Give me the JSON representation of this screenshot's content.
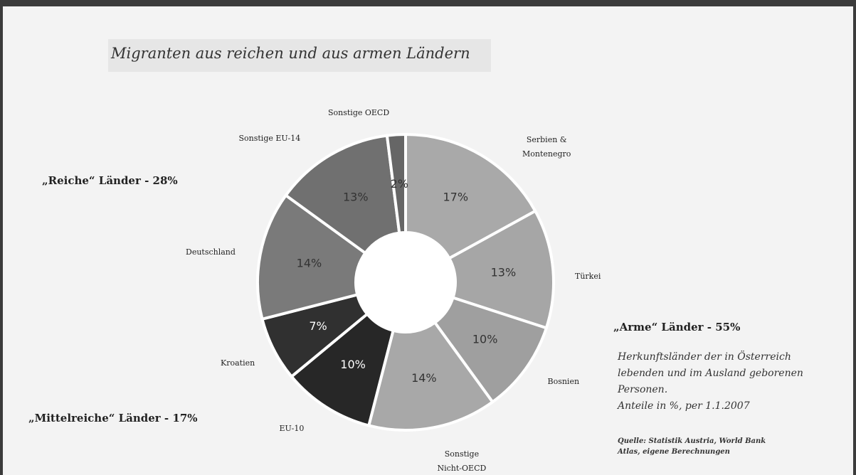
{
  "chart_data": {
    "type": "donut",
    "title": "Migranten aus reichen und aus armen Ländern",
    "categories": [
      "Serbien &\nMontenegro",
      "Türkei",
      "Bosnien",
      "Sonstige\nNicht-OECD",
      "EU-10",
      "Kroatien",
      "Deutschland",
      "Sonstige EU-14",
      "Sonstige OECD"
    ],
    "values": [
      17,
      13,
      10,
      14,
      10,
      7,
      14,
      13,
      2
    ],
    "value_labels": [
      "17%",
      "13%",
      "10%",
      "14%",
      "10%",
      "7%",
      "14%",
      "13%",
      "2%"
    ],
    "colors": [
      "#a9a9a9",
      "#a6a6a6",
      "#9f9f9f",
      "#a8a8a8",
      "#272727",
      "#303030",
      "#7a7a7a",
      "#707070",
      "#666666"
    ],
    "annotations": {
      "rich": "„Reiche“ Länder - 28%",
      "middle": "„Mittelreiche“ Länder - 17%",
      "poor": "„Arme“ Länder - 55%",
      "note": "Herkunftsländer der in Österreich\nlebenden und im Ausland geborenen\nPersonen.\nAnteile in %, per 1.1.2007",
      "source": "Quelle: Statistik Austria, World Bank\nAtlas, eigene Berechnungen"
    }
  }
}
